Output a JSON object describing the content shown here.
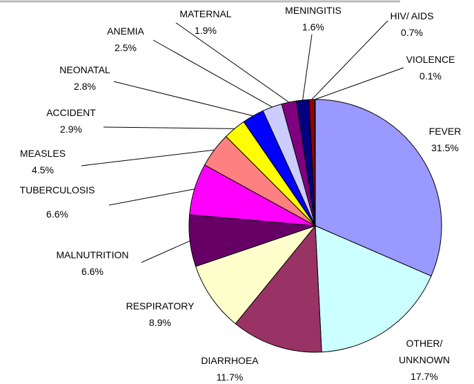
{
  "chart_data": {
    "type": "pie",
    "categories": [
      "FEVER",
      "OTHER/ UNKNOWN",
      "DIARRHOEA",
      "RESPIRATORY",
      "MALNUTRITION",
      "TUBERCULOSIS",
      "MEASLES",
      "ACCIDENT",
      "NEONATAL",
      "ANEMIA",
      "MATERNAL",
      "MENINGITIS",
      "HIV/ AIDS",
      "VIOLENCE"
    ],
    "values": [
      31.5,
      17.7,
      11.7,
      8.9,
      6.6,
      6.6,
      4.5,
      2.9,
      2.8,
      2.5,
      1.9,
      1.6,
      0.7,
      0.1
    ],
    "value_labels": [
      "31.5%",
      "17.7%",
      "11.7%",
      "8.9%",
      "6.6%",
      "6.6%",
      "4.5%",
      "2.9%",
      "2.8%",
      "2.5%",
      "1.9%",
      "1.6%",
      "0.7%",
      "0.1%"
    ],
    "colors": [
      "#9999ff",
      "#ccffff",
      "#993366",
      "#ffffcc",
      "#660066",
      "#ff00ff",
      "#ff8080",
      "#ffff00",
      "#0000ff",
      "#ccccff",
      "#800080",
      "#000080",
      "#990000",
      "#ff0000"
    ]
  }
}
